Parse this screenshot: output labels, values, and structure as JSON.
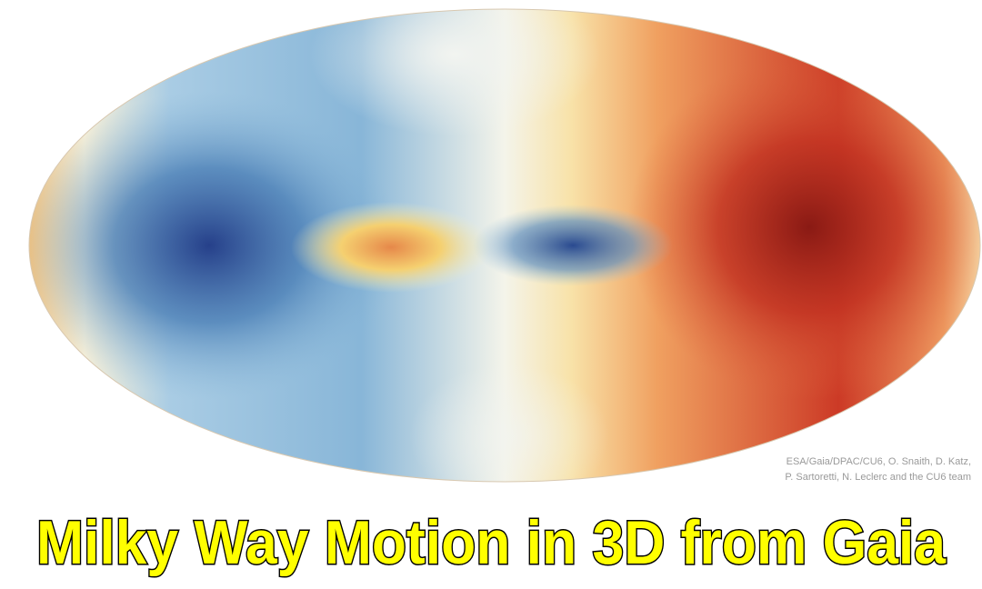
{
  "image": {
    "credit_lines": [
      "ESA/Gaia/DPAC/CU6, O. Snaith, D. Katz,",
      "P. Sartoretti, N. Leclerc and the CU6 team"
    ]
  },
  "title": "Milky Way Motion in 3D from Gaia"
}
